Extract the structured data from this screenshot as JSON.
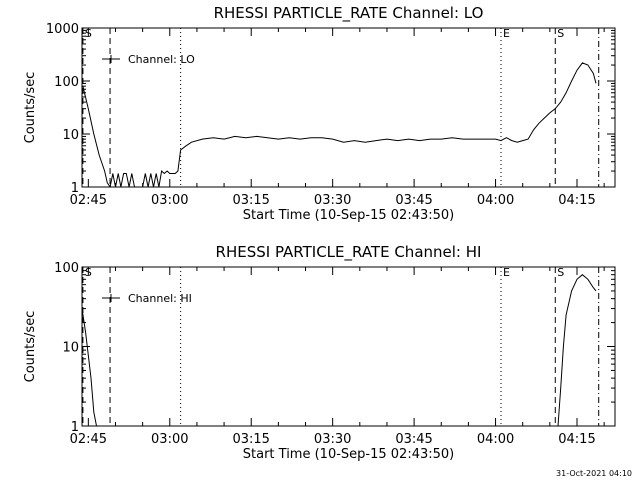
{
  "footer": {
    "timestamp": "31-Oct-2021 04:10"
  },
  "chart_data": [
    {
      "type": "line",
      "title": "RHESSI PARTICLE_RATE Channel: LO",
      "xlabel": "Start Time (10-Sep-15 02:43:50)",
      "ylabel": "Counts/sec",
      "yscale": "log",
      "xlim": [
        "02:43:50",
        "04:22:00"
      ],
      "ylim": [
        1,
        1000
      ],
      "x_ticks": [
        "02:45",
        "03:00",
        "03:15",
        "03:30",
        "03:45",
        "04:00",
        "04:15"
      ],
      "y_ticks": [
        "1",
        "10",
        "100",
        "1000"
      ],
      "legend": {
        "position": "top-left",
        "entries": [
          "Channel: LO"
        ]
      },
      "markers": [
        {
          "time": "02:44",
          "label": "S",
          "style": "dashed"
        },
        {
          "time": "02:49",
          "label": "",
          "style": "dashed"
        },
        {
          "time": "03:02",
          "label": "",
          "style": "dotted"
        },
        {
          "time": "04:01",
          "label": "E",
          "style": "dotted"
        },
        {
          "time": "04:11",
          "label": "S",
          "style": "dashed"
        },
        {
          "time": "04:19",
          "label": "",
          "style": "dashdot"
        }
      ],
      "series": [
        {
          "x": [
            "02:44",
            "02:45",
            "02:46",
            "02:47",
            "02:48",
            "02:48:30",
            "02:49",
            "02:49:30",
            "02:50",
            "02:50:30",
            "02:51",
            "02:51:30",
            "02:52",
            "02:52:30",
            "02:53",
            "02:53:30",
            "02:54",
            "02:54:30",
            "02:55",
            "02:55:30",
            "02:56",
            "02:56:30",
            "02:57",
            "02:57:30",
            "02:58",
            "02:58:30",
            "02:59",
            "02:59:30",
            "03:00",
            "03:00:30",
            "03:01",
            "03:01:30",
            "03:02",
            "03:03",
            "03:04",
            "03:06",
            "03:08",
            "03:10",
            "03:12",
            "03:14",
            "03:16",
            "03:18",
            "03:20",
            "03:22",
            "03:24",
            "03:26",
            "03:28",
            "03:30",
            "03:32",
            "03:34",
            "03:36",
            "03:38",
            "03:40",
            "03:42",
            "03:44",
            "03:46",
            "03:48",
            "03:50",
            "03:52",
            "03:54",
            "03:56",
            "03:58",
            "04:00",
            "04:01",
            "04:02",
            "04:03",
            "04:04",
            "04:05",
            "04:06",
            "04:07",
            "04:08",
            "04:09",
            "04:10",
            "04:11",
            "04:12",
            "04:13",
            "04:14",
            "04:15",
            "04:16",
            "04:17",
            "04:18",
            "04:18:30"
          ],
          "values": [
            80,
            30,
            10,
            4,
            2,
            1.2,
            1,
            1.8,
            1,
            1.8,
            1,
            1.8,
            1.8,
            1,
            1.8,
            1,
            1,
            1,
            1,
            1.8,
            1,
            1.8,
            1,
            1.8,
            1,
            2,
            1.8,
            2,
            1.8,
            1.8,
            1.8,
            2,
            5,
            6,
            7,
            8,
            8.5,
            8,
            9,
            8.5,
            9,
            8.5,
            8,
            8.5,
            8,
            8.5,
            8.5,
            8,
            7,
            7.5,
            7,
            7.5,
            8,
            7.5,
            8,
            7.5,
            8,
            8,
            8.5,
            8,
            8,
            8,
            8,
            7.5,
            8.5,
            7.5,
            7,
            7.5,
            8,
            12,
            16,
            20,
            25,
            30,
            40,
            60,
            100,
            160,
            220,
            200,
            140,
            90
          ]
        }
      ]
    },
    {
      "type": "line",
      "title": "RHESSI PARTICLE_RATE Channel: HI",
      "xlabel": "Start Time (10-Sep-15 02:43:50)",
      "ylabel": "Counts/sec",
      "yscale": "log",
      "xlim": [
        "02:43:50",
        "04:22:00"
      ],
      "ylim": [
        1,
        100
      ],
      "x_ticks": [
        "02:45",
        "03:00",
        "03:15",
        "03:30",
        "03:45",
        "04:00",
        "04:15"
      ],
      "y_ticks": [
        "1",
        "10",
        "100"
      ],
      "legend": {
        "position": "top-left",
        "entries": [
          "Channel: HI"
        ]
      },
      "markers": [
        {
          "time": "02:44",
          "label": "S",
          "style": "dashed"
        },
        {
          "time": "02:49",
          "label": "",
          "style": "dashed"
        },
        {
          "time": "03:02",
          "label": "",
          "style": "dotted"
        },
        {
          "time": "04:01",
          "label": "E",
          "style": "dotted"
        },
        {
          "time": "04:11",
          "label": "S",
          "style": "dashed"
        },
        {
          "time": "04:19",
          "label": "",
          "style": "dashdot"
        }
      ],
      "series": [
        {
          "x": [
            "02:43:50",
            "02:44:30",
            "02:45:30",
            "02:46",
            "02:46:30"
          ],
          "values": [
            30,
            15,
            4,
            1.5,
            1
          ]
        },
        {
          "x": [
            "04:11:30",
            "04:12",
            "04:12:30",
            "04:13",
            "04:14",
            "04:15",
            "04:16",
            "04:17",
            "04:18",
            "04:18:30"
          ],
          "values": [
            1,
            3,
            10,
            25,
            50,
            70,
            80,
            70,
            55,
            50
          ]
        }
      ]
    }
  ]
}
